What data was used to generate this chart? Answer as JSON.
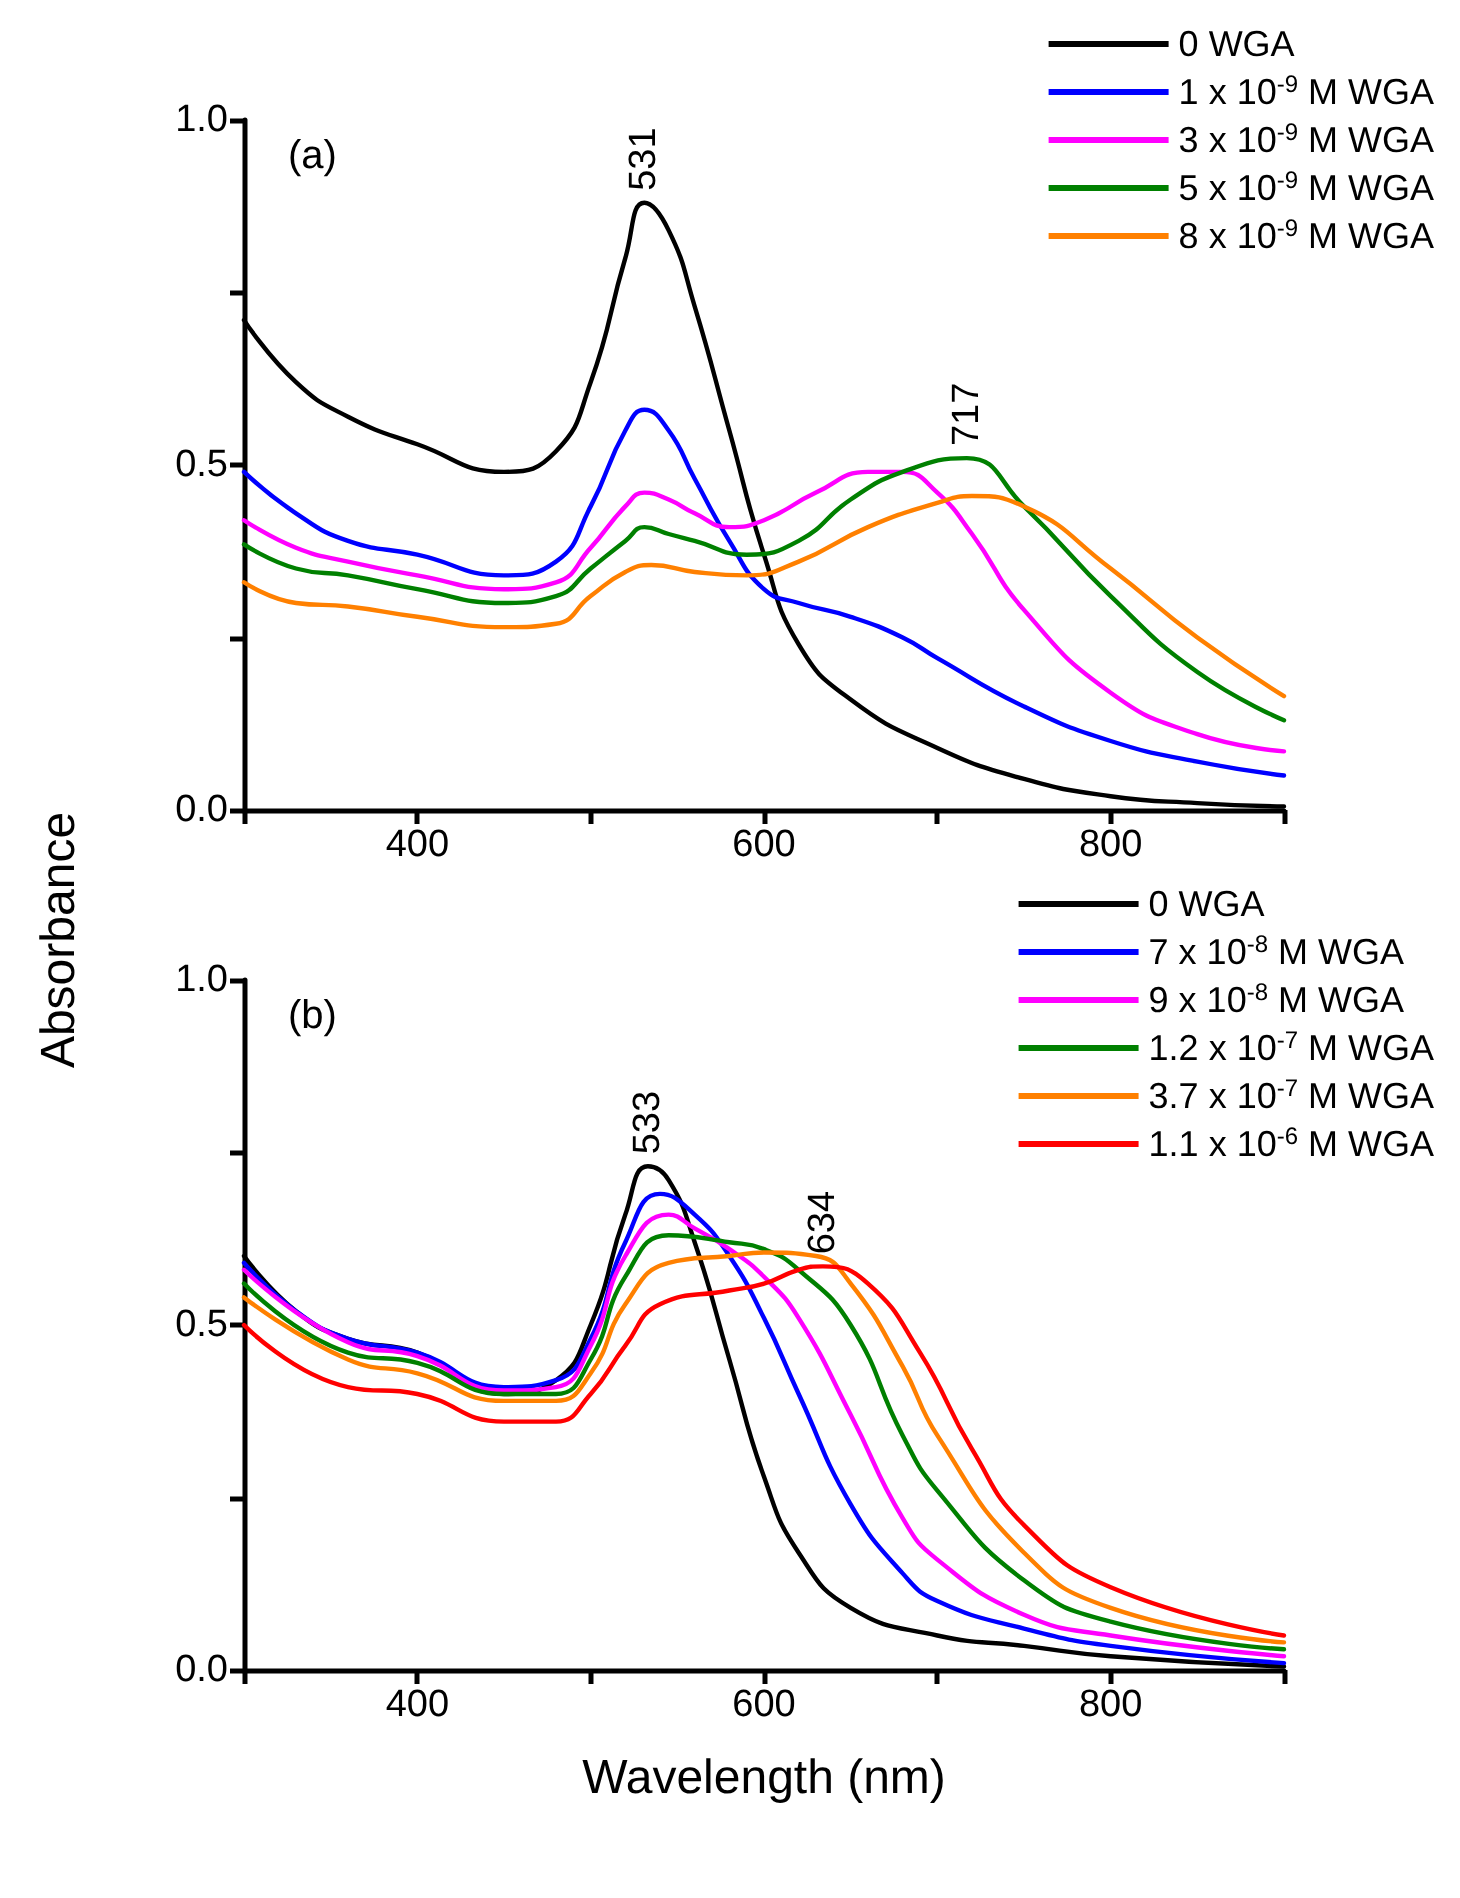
{
  "chart_data": [
    {
      "type": "line",
      "ylabel": "Absorbance",
      "xlim": [
        300,
        900
      ],
      "ylim": [
        0,
        1.0
      ],
      "xticks": [
        {
          "value": 300,
          "label": null
        },
        400,
        {
          "value": 500,
          "label": null
        },
        600,
        {
          "value": 700,
          "label": null
        },
        800,
        {
          "value": 900,
          "label": null
        }
      ],
      "yticks": [
        {
          "value": 0,
          "label": "0.0"
        },
        {
          "value": 0.25,
          "label": null
        },
        0.5,
        {
          "value": 0.75,
          "label": null
        },
        {
          "value": 1.0,
          "label": "1.0"
        }
      ],
      "legend": "top right",
      "marker": "none",
      "line_style": "solid",
      "annotations": [
        "(a)",
        {
          "text": "531",
          "x": 531,
          "y": 0.88
        },
        {
          "text": "717",
          "x": 717,
          "y": 0.51
        }
      ],
      "series": [
        {
          "name": "0 WGA",
          "color": "#000000",
          "x": [
            300,
            330,
            360,
            400,
            450,
            480,
            500,
            520,
            531,
            545,
            560,
            580,
            600,
            620,
            650,
            700,
            750,
            800,
            850,
            900
          ],
          "values": [
            0.71,
            0.62,
            0.57,
            0.53,
            0.49,
            0.52,
            0.62,
            0.8,
            0.88,
            0.84,
            0.73,
            0.55,
            0.37,
            0.24,
            0.16,
            0.09,
            0.045,
            0.02,
            0.01,
            0.005
          ]
        },
        {
          "name": "1 x 10$^{-9}$ M WGA",
          "color": "#0000ff",
          "x": [
            300,
            330,
            360,
            400,
            450,
            480,
            500,
            520,
            531,
            545,
            560,
            580,
            600,
            620,
            650,
            680,
            700,
            750,
            800,
            850,
            900
          ],
          "values": [
            0.49,
            0.43,
            0.39,
            0.37,
            0.34,
            0.36,
            0.44,
            0.55,
            0.58,
            0.55,
            0.48,
            0.39,
            0.32,
            0.3,
            0.28,
            0.25,
            0.22,
            0.15,
            0.1,
            0.07,
            0.05
          ]
        },
        {
          "name": "3 x 10$^{-9}$ M WGA",
          "color": "#ff00ff",
          "x": [
            300,
            330,
            360,
            400,
            450,
            480,
            500,
            520,
            531,
            545,
            560,
            580,
            600,
            630,
            660,
            680,
            700,
            720,
            750,
            800,
            850,
            900
          ],
          "values": [
            0.42,
            0.38,
            0.36,
            0.34,
            0.32,
            0.33,
            0.38,
            0.44,
            0.46,
            0.45,
            0.43,
            0.41,
            0.42,
            0.46,
            0.49,
            0.49,
            0.46,
            0.4,
            0.29,
            0.17,
            0.11,
            0.085
          ]
        },
        {
          "name": "5 x 10$^{-9}$ M WGA",
          "color": "#008000",
          "x": [
            300,
            330,
            360,
            400,
            450,
            480,
            500,
            520,
            531,
            545,
            560,
            590,
            620,
            650,
            680,
            717,
            750,
            800,
            850,
            900
          ],
          "values": [
            0.385,
            0.35,
            0.34,
            0.32,
            0.3,
            0.31,
            0.35,
            0.39,
            0.41,
            0.4,
            0.39,
            0.37,
            0.39,
            0.45,
            0.49,
            0.51,
            0.44,
            0.31,
            0.2,
            0.13
          ]
        },
        {
          "name": "8 x 10$^{-9}$ M WGA",
          "color": "#ff8000",
          "x": [
            300,
            330,
            360,
            400,
            450,
            480,
            500,
            520,
            535,
            560,
            590,
            620,
            660,
            700,
            720,
            750,
            800,
            850,
            900
          ],
          "values": [
            0.33,
            0.3,
            0.295,
            0.28,
            0.265,
            0.27,
            0.31,
            0.345,
            0.355,
            0.345,
            0.34,
            0.36,
            0.41,
            0.445,
            0.455,
            0.44,
            0.35,
            0.25,
            0.165
          ]
        }
      ]
    },
    {
      "type": "line",
      "xlabel": "Wavelength (nm)",
      "xlim": [
        300,
        900
      ],
      "ylim": [
        0,
        1.0
      ],
      "xticks": [
        {
          "value": 300,
          "label": null
        },
        400,
        {
          "value": 500,
          "label": null
        },
        600,
        {
          "value": 700,
          "label": null
        },
        800,
        {
          "value": 900,
          "label": null
        }
      ],
      "yticks": [
        {
          "value": 0,
          "label": "0.0"
        },
        {
          "value": 0.25,
          "label": null
        },
        0.5,
        {
          "value": 0.75,
          "label": null
        },
        {
          "value": 1.0,
          "label": "1.0"
        }
      ],
      "legend": "top right",
      "marker": "none",
      "line_style": "solid",
      "annotations": [
        "(b)",
        {
          "text": "533",
          "x": 533,
          "y": 0.73
        },
        {
          "text": "634",
          "x": 634,
          "y": 0.585
        }
      ],
      "series": [
        {
          "name": "0 WGA",
          "color": "#000000",
          "x": [
            300,
            330,
            360,
            400,
            450,
            480,
            500,
            520,
            533,
            545,
            560,
            580,
            600,
            620,
            650,
            700,
            750,
            800,
            900
          ],
          "values": [
            0.6,
            0.52,
            0.48,
            0.46,
            0.4,
            0.42,
            0.5,
            0.66,
            0.73,
            0.71,
            0.62,
            0.45,
            0.28,
            0.17,
            0.09,
            0.05,
            0.035,
            0.02,
            0.005
          ]
        },
        {
          "name": "7 x 10$^{-8}$ M WGA",
          "color": "#0000ff",
          "x": [
            300,
            330,
            360,
            400,
            450,
            480,
            500,
            520,
            540,
            560,
            580,
            600,
            620,
            650,
            680,
            700,
            750,
            800,
            900
          ],
          "values": [
            0.59,
            0.52,
            0.48,
            0.46,
            0.41,
            0.42,
            0.48,
            0.62,
            0.69,
            0.66,
            0.6,
            0.51,
            0.4,
            0.24,
            0.14,
            0.1,
            0.06,
            0.035,
            0.01
          ]
        },
        {
          "name": "9 x 10$^{-8}$ M WGA",
          "color": "#ff00ff",
          "x": [
            300,
            360,
            400,
            450,
            480,
            500,
            520,
            545,
            560,
            580,
            600,
            620,
            650,
            680,
            700,
            750,
            800,
            900
          ],
          "values": [
            0.58,
            0.475,
            0.455,
            0.405,
            0.41,
            0.47,
            0.6,
            0.66,
            0.64,
            0.61,
            0.57,
            0.51,
            0.37,
            0.22,
            0.16,
            0.08,
            0.05,
            0.02
          ]
        },
        {
          "name": "1.2 x 10$^{-7}$ M WGA",
          "color": "#008000",
          "x": [
            300,
            360,
            400,
            450,
            480,
            500,
            520,
            545,
            580,
            600,
            620,
            650,
            680,
            700,
            750,
            800,
            900
          ],
          "values": [
            0.56,
            0.46,
            0.445,
            0.4,
            0.4,
            0.45,
            0.57,
            0.63,
            0.62,
            0.61,
            0.58,
            0.5,
            0.34,
            0.26,
            0.13,
            0.07,
            0.03
          ]
        },
        {
          "name": "3.7 x 10$^{-7}$ M WGA",
          "color": "#ff8000",
          "x": [
            300,
            360,
            400,
            450,
            480,
            500,
            520,
            545,
            580,
            600,
            630,
            650,
            680,
            700,
            750,
            800,
            900
          ],
          "values": [
            0.54,
            0.45,
            0.43,
            0.39,
            0.39,
            0.43,
            0.53,
            0.59,
            0.6,
            0.605,
            0.6,
            0.56,
            0.44,
            0.34,
            0.17,
            0.09,
            0.04
          ]
        },
        {
          "name": "1.1 x 10$^{-6}$ M WGA",
          "color": "#ff0000",
          "x": [
            300,
            360,
            400,
            450,
            480,
            500,
            520,
            540,
            580,
            600,
            620,
            634,
            660,
            690,
            720,
            750,
            800,
            900
          ],
          "values": [
            0.5,
            0.41,
            0.4,
            0.36,
            0.36,
            0.4,
            0.47,
            0.53,
            0.55,
            0.56,
            0.58,
            0.585,
            0.56,
            0.46,
            0.32,
            0.21,
            0.12,
            0.05
          ]
        }
      ]
    }
  ]
}
